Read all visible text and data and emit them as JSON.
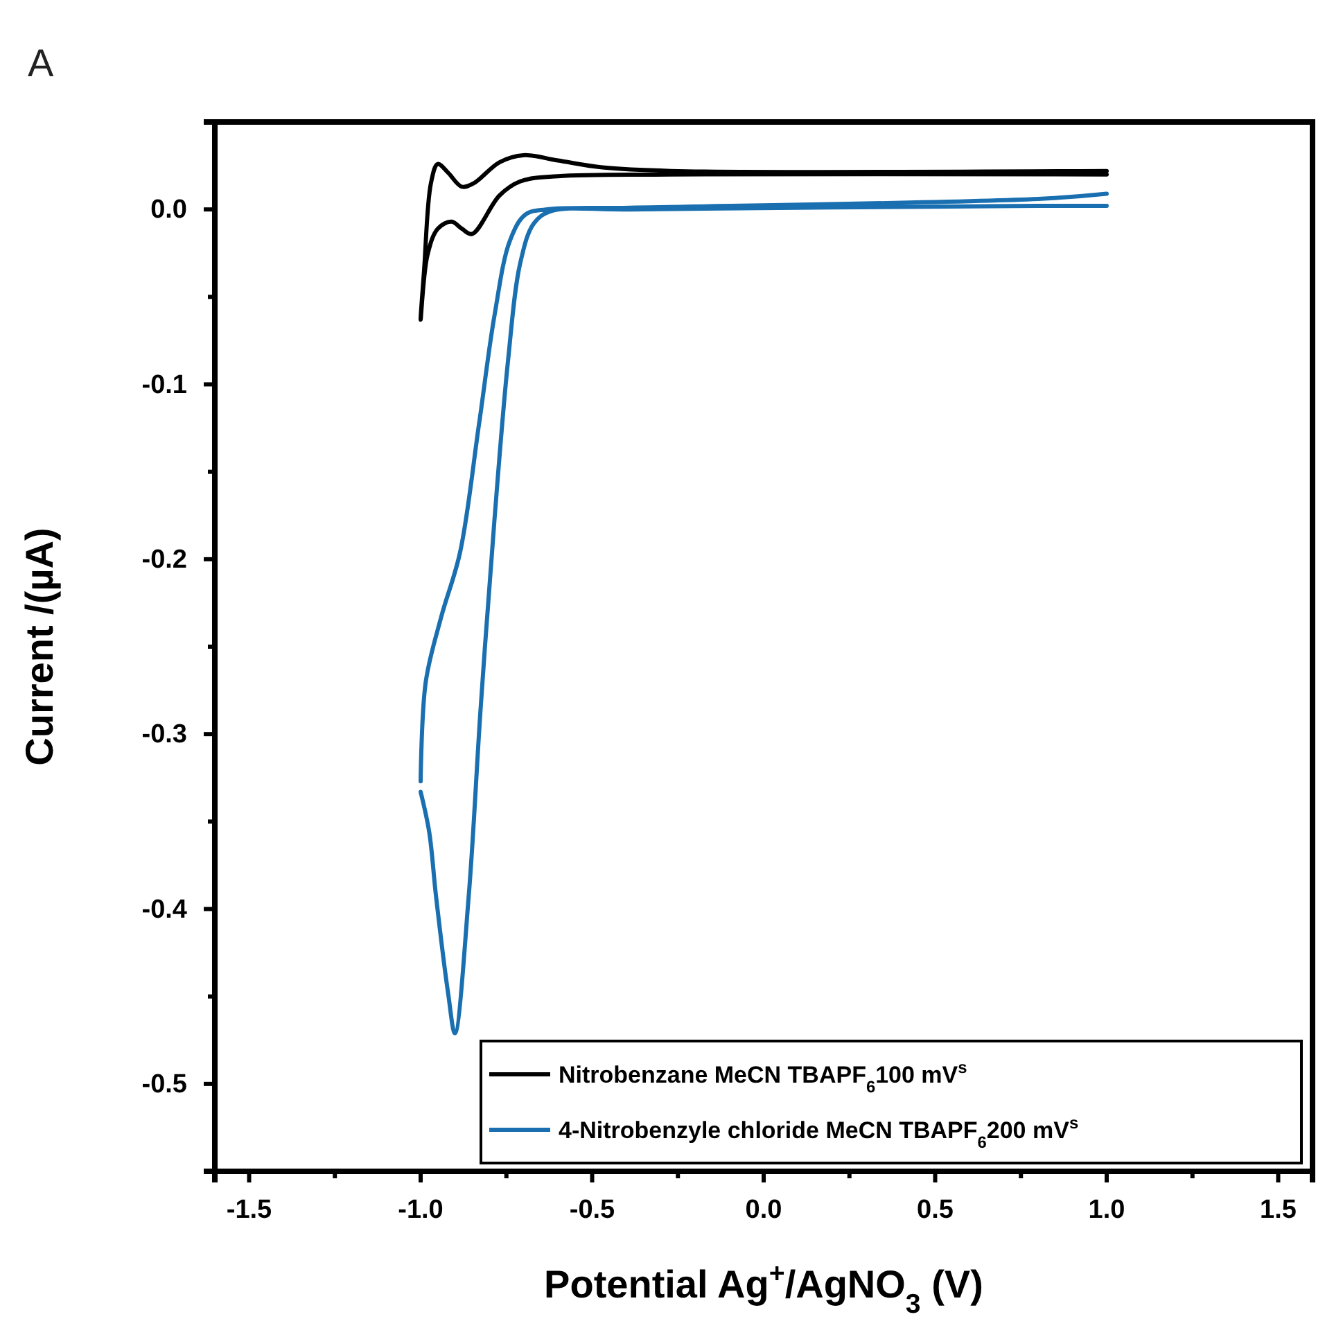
{
  "chart_data": {
    "type": "line",
    "title": "A",
    "xlabel": "Potential Ag$^{+}$/AgNO$_{3}$ (V)",
    "ylabel": "Current /(µA)",
    "xlim": [
      -1.6,
      1.6
    ],
    "ylim": [
      -0.55,
      0.05
    ],
    "xticks": [
      -1.5,
      {
        "value": -1.25,
        "label": null
      },
      {
        "value": -1.0,
        "label": "-1.0"
      },
      {
        "value": -0.75,
        "label": null
      },
      -0.5,
      {
        "value": -0.25,
        "label": null
      },
      {
        "value": 0.0,
        "label": "0.0"
      },
      {
        "value": 0.25,
        "label": null
      },
      0.5,
      {
        "value": 0.75,
        "label": null
      },
      {
        "value": 1.0,
        "label": "1.0"
      },
      {
        "value": 1.25,
        "label": null
      },
      1.5
    ],
    "yticks": [
      {
        "value": 0.0,
        "label": "0.0"
      },
      {
        "value": -0.05,
        "label": null
      },
      -0.1,
      {
        "value": -0.15,
        "label": null
      },
      -0.2,
      {
        "value": -0.25,
        "label": null
      },
      -0.3,
      {
        "value": -0.35,
        "label": null
      },
      -0.4,
      {
        "value": -0.45,
        "label": null
      },
      -0.5
    ],
    "legend": "bottom right",
    "grid": false,
    "marker": "none",
    "line_style": "solid",
    "series": [
      {
        "name": "Nitrobenzane MeCN TBAPF$_{6}$100 mV$^{s}$",
        "color": "#000000",
        "x": [
          1.0,
          -0.27,
          -0.6,
          -0.71,
          -0.77,
          -0.85,
          -0.88,
          -0.91,
          -0.95,
          -0.98,
          -1.0,
          -0.99,
          -0.97,
          -0.95,
          -0.92,
          -0.88,
          -0.845,
          -0.77,
          -0.7,
          -0.6,
          -0.47,
          -0.27,
          1.0
        ],
        "values": [
          0.02,
          0.02,
          0.019,
          0.016,
          0.008,
          -0.014,
          -0.011,
          -0.007,
          -0.011,
          -0.026,
          -0.063,
          -0.035,
          0.015,
          0.026,
          0.021,
          0.013,
          0.015,
          0.027,
          0.031,
          0.028,
          0.024,
          0.022,
          0.022
        ]
      },
      {
        "name": "4-Nitrobenzyle chloride MeCN TBAPF$_{6}$200 mV$^{s}$",
        "color": "#1a6fb0",
        "x": [
          1.0,
          0.8,
          -0.39,
          -0.62,
          -0.67,
          -0.71,
          -0.745,
          -0.785,
          -0.825,
          -0.86,
          -0.9,
          -0.92,
          -0.955,
          -0.975,
          -1.0,
          null,
          -1.0,
          -0.985,
          -0.94,
          -0.885,
          -0.83,
          -0.785,
          -0.74,
          -0.695,
          -0.635,
          -0.39,
          0.8,
          1.0
        ],
        "values": [
          0.002,
          0.002,
          0.0,
          -0.001,
          -0.008,
          -0.031,
          -0.086,
          -0.178,
          -0.285,
          -0.393,
          -0.471,
          -0.448,
          -0.393,
          -0.356,
          -0.333,
          null,
          -0.327,
          -0.27,
          -0.233,
          -0.196,
          -0.123,
          -0.061,
          -0.018,
          -0.003,
          0.0,
          0.001,
          0.006,
          0.009
        ]
      }
    ]
  }
}
